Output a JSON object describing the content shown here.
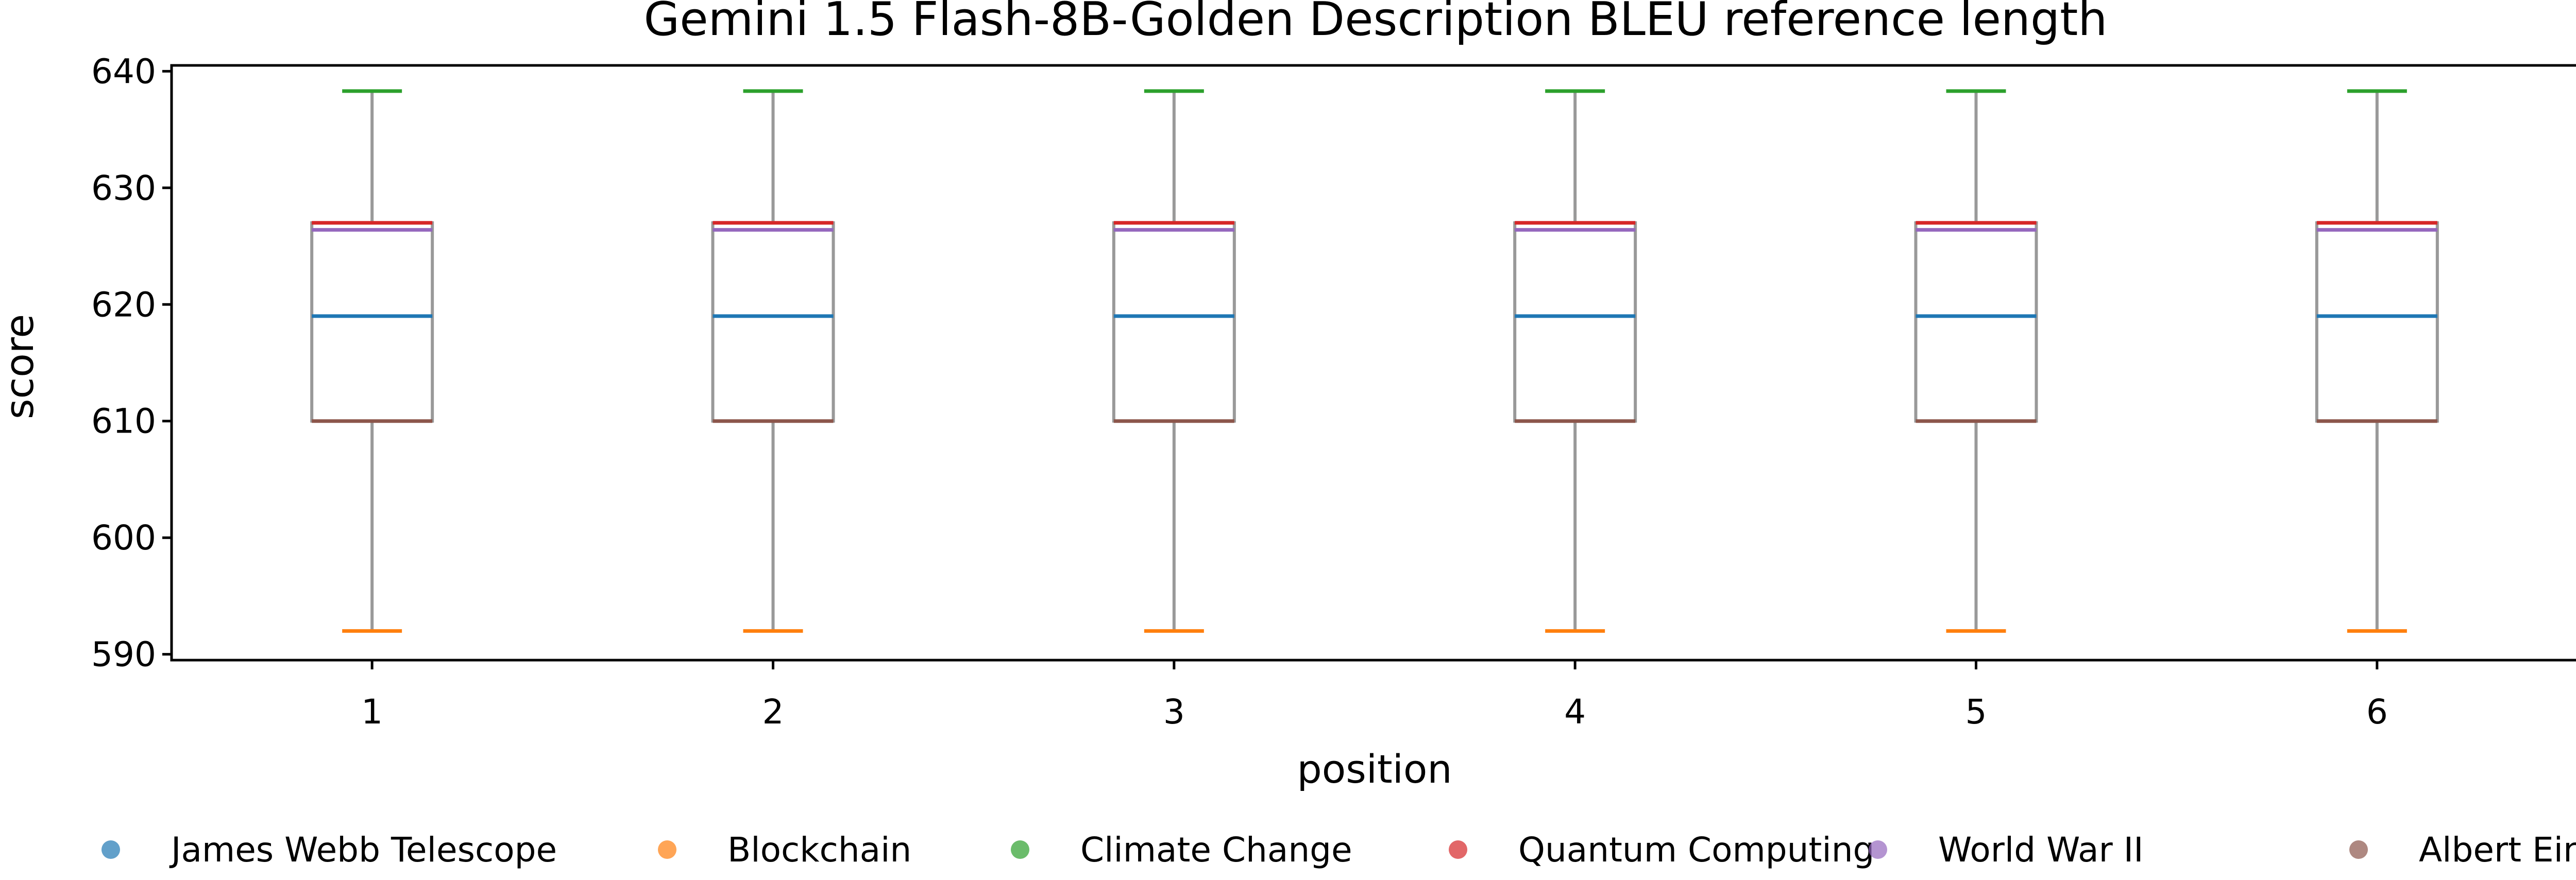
{
  "chart_data": {
    "type": "box",
    "title": "Gemini 1.5 Flash-8B-Golden Description BLEU reference length",
    "xlabel": "position",
    "ylabel": "score",
    "ylim": [
      589.5,
      640.5
    ],
    "yticks": [
      590,
      600,
      610,
      620,
      630,
      640
    ],
    "categories": [
      "1",
      "2",
      "3",
      "4",
      "5",
      "6"
    ],
    "boxes": [
      {
        "position": "1",
        "q1": 610,
        "q3": 627,
        "whisker_low": 592,
        "whisker_high": 638.3
      },
      {
        "position": "2",
        "q1": 610,
        "q3": 627,
        "whisker_low": 592,
        "whisker_high": 638.3
      },
      {
        "position": "3",
        "q1": 610,
        "q3": 627,
        "whisker_low": 592,
        "whisker_high": 638.3
      },
      {
        "position": "4",
        "q1": 610,
        "q3": 627,
        "whisker_low": 592,
        "whisker_high": 638.3
      },
      {
        "position": "5",
        "q1": 610,
        "q3": 627,
        "whisker_low": 592,
        "whisker_high": 638.3
      },
      {
        "position": "6",
        "q1": 610,
        "q3": 627,
        "whisker_low": 592,
        "whisker_high": 638.3
      }
    ],
    "series": [
      {
        "name": "James Webb Telescope",
        "color": "#1f77b4",
        "values": [
          619,
          619,
          619,
          619,
          619,
          619
        ]
      },
      {
        "name": "Blockchain",
        "color": "#ff7f0e",
        "values": [
          592,
          592,
          592,
          592,
          592,
          592
        ]
      },
      {
        "name": "Climate Change",
        "color": "#2ca02c",
        "values": [
          638.3,
          638.3,
          638.3,
          638.3,
          638.3,
          638.3
        ]
      },
      {
        "name": "Quantum Computing",
        "color": "#d62728",
        "values": [
          627,
          627,
          627,
          627,
          627,
          627
        ]
      },
      {
        "name": "World War II",
        "color": "#9467bd",
        "values": [
          626.4,
          626.4,
          626.4,
          626.4,
          626.4,
          626.4
        ]
      },
      {
        "name": "Albert Einstein",
        "color": "#8c564b",
        "values": [
          610,
          610,
          610,
          610,
          610,
          610
        ]
      }
    ],
    "box_color": "#999999",
    "grid": false,
    "legend_position": "bottom"
  }
}
